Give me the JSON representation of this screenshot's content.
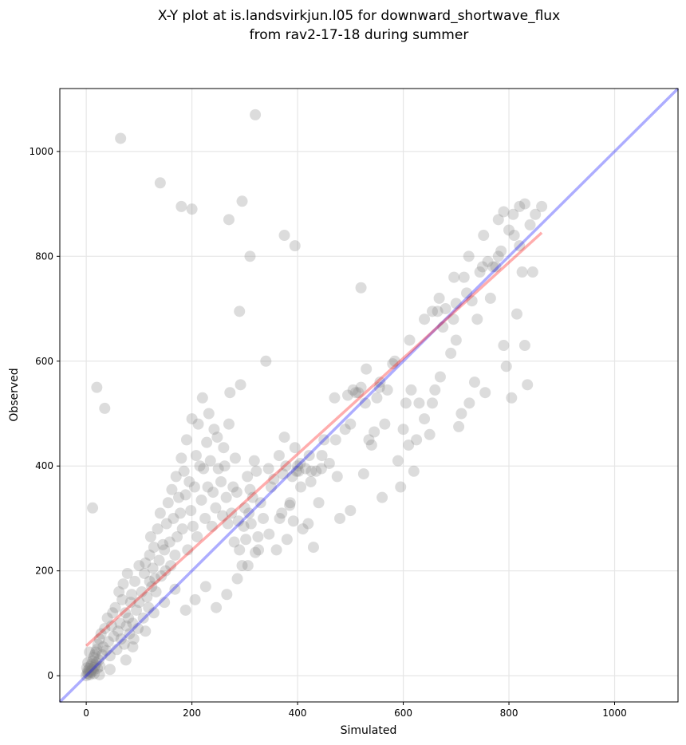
{
  "chart_data": {
    "type": "scatter",
    "title": "X-Y plot at is.landsvirkjun.l05 for downward_shortwave_flux",
    "subtitle": "from rav2-17-18 during summer",
    "xlabel": "Simulated",
    "ylabel": "Observed",
    "xlim": [
      -50,
      1120
    ],
    "ylim": [
      -50,
      1120
    ],
    "xticks": [
      0,
      200,
      400,
      600,
      800,
      1000
    ],
    "yticks": [
      0,
      200,
      400,
      600,
      800,
      1000
    ],
    "grid": true,
    "point_color": "#808080",
    "identity_line_color": "#0000ff",
    "fit_line_color": "#ff0000",
    "identity_line": {
      "x": [
        -50,
        1120
      ],
      "y": [
        -50,
        1120
      ]
    },
    "fit_line": {
      "x": [
        0,
        862
      ],
      "y": [
        57,
        845
      ]
    },
    "series": [
      {
        "x": [
          0,
          2,
          3,
          4,
          5,
          6,
          7,
          8,
          9,
          10,
          11,
          12,
          13,
          14,
          15,
          16,
          17,
          18,
          19,
          20,
          21,
          22,
          24,
          25,
          26,
          28,
          30,
          32,
          35,
          38,
          40,
          42,
          45,
          48,
          50,
          52,
          55,
          58,
          60,
          62,
          64,
          66,
          68,
          70,
          72,
          74,
          76,
          78,
          80,
          82,
          84,
          86,
          88,
          90,
          92,
          95,
          98,
          100,
          100,
          105,
          108,
          110,
          112,
          115,
          118,
          120,
          120,
          122,
          124,
          126,
          128,
          130,
          132,
          135,
          138,
          140,
          142,
          145,
          148,
          150,
          152,
          155,
          158,
          160,
          162,
          165,
          168,
          170,
          172,
          175,
          178,
          180,
          182,
          185,
          188,
          190,
          192,
          195,
          198,
          200,
          202,
          205,
          208,
          210,
          212,
          215,
          218,
          220,
          222,
          225,
          228,
          230,
          232,
          235,
          238,
          240,
          242,
          245,
          248,
          250,
          255,
          258,
          260,
          262,
          265,
          268,
          270,
          272,
          275,
          278,
          280,
          282,
          285,
          288,
          290,
          292,
          295,
          298,
          300,
          302,
          305,
          308,
          310,
          312,
          315,
          318,
          320,
          322,
          325,
          330,
          335,
          340,
          345,
          350,
          355,
          360,
          365,
          370,
          372,
          375,
          378,
          380,
          385,
          390,
          392,
          395,
          398,
          400,
          402,
          405,
          410,
          415,
          420,
          422,
          425,
          430,
          435,
          440,
          445,
          450,
          460,
          470,
          475,
          480,
          490,
          495,
          500,
          505,
          510,
          515,
          520,
          525,
          530,
          535,
          540,
          545,
          550,
          555,
          560,
          565,
          570,
          580,
          590,
          595,
          600,
          605,
          610,
          615,
          620,
          625,
          630,
          640,
          650,
          655,
          660,
          665,
          670,
          675,
          680,
          690,
          695,
          700,
          705,
          710,
          715,
          720,
          725,
          730,
          735,
          740,
          745,
          750,
          755,
          760,
          765,
          770,
          775,
          780,
          785,
          790,
          795,
          800,
          805,
          810,
          815,
          820,
          825,
          830,
          835,
          840,
          845,
          850,
          862,
          270,
          295,
          310,
          320,
          200,
          375,
          395,
          290,
          520,
          655,
          700,
          790,
          180,
          140,
          65,
          20,
          35,
          12,
          6,
          3,
          1,
          8,
          15,
          25,
          45,
          75,
          88,
          112,
          128,
          148,
          168,
          188,
          206,
          226,
          246,
          266,
          286,
          306,
          326,
          346,
          366,
          386,
          406,
          426,
          446,
          472,
          500,
          528,
          556,
          584,
          612,
          640,
          668,
          696,
          724,
          752,
          780,
          808,
          820,
          830
        ],
        "y": [
          0,
          5,
          10,
          3,
          8,
          14,
          2,
          18,
          6,
          22,
          12,
          28,
          9,
          35,
          16,
          40,
          20,
          45,
          25,
          50,
          14,
          60,
          30,
          70,
          18,
          80,
          40,
          55,
          90,
          48,
          110,
          65,
          38,
          95,
          120,
          75,
          130,
          50,
          85,
          160,
          100,
          70,
          145,
          175,
          60,
          120,
          95,
          195,
          110,
          80,
          140,
          155,
          100,
          70,
          180,
          125,
          90,
          210,
          140,
          160,
          110,
          195,
          215,
          150,
          130,
          230,
          180,
          265,
          170,
          205,
          245,
          185,
          160,
          280,
          220,
          310,
          190,
          250,
          240,
          200,
          290,
          330,
          255,
          210,
          355,
          300,
          230,
          380,
          265,
          340,
          310,
          415,
          280,
          390,
          345,
          450,
          240,
          370,
          315,
          490,
          285,
          360,
          420,
          265,
          480,
          400,
          335,
          530,
          395,
          300,
          445,
          360,
          500,
          410,
          285,
          350,
          470,
          320,
          455,
          395,
          370,
          305,
          435,
          400,
          340,
          290,
          480,
          540,
          310,
          360,
          255,
          415,
          350,
          295,
          240,
          555,
          210,
          285,
          320,
          260,
          380,
          310,
          355,
          290,
          340,
          410,
          235,
          390,
          265,
          330,
          300,
          600,
          395,
          360,
          375,
          240,
          420,
          310,
          385,
          455,
          400,
          260,
          325,
          380,
          295,
          435,
          390,
          400,
          390,
          405,
          280,
          395,
          290,
          420,
          370,
          245,
          390,
          330,
          395,
          450,
          405,
          530,
          380,
          300,
          470,
          535,
          315,
          545,
          540,
          540,
          550,
          385,
          585,
          450,
          440,
          465,
          530,
          550,
          340,
          480,
          545,
          595,
          410,
          360,
          470,
          520,
          440,
          545,
          390,
          450,
          520,
          490,
          460,
          520,
          545,
          695,
          570,
          665,
          700,
          615,
          680,
          640,
          475,
          500,
          760,
          730,
          520,
          715,
          560,
          680,
          770,
          780,
          540,
          790,
          720,
          780,
          780,
          800,
          810,
          630,
          590,
          850,
          530,
          840,
          690,
          820,
          770,
          630,
          555,
          860,
          770,
          880,
          895,
          870,
          905,
          800,
          1070,
          890,
          840,
          820,
          695,
          740,
          695,
          710,
          885,
          895,
          940,
          1025,
          550,
          510,
          320,
          45,
          25,
          15,
          8,
          4,
          2,
          12,
          30,
          55,
          85,
          120,
          140,
          165,
          125,
          145,
          170,
          130,
          155,
          185,
          210,
          240,
          270,
          300,
          330,
          360,
          390,
          420,
          450,
          480,
          520,
          560,
          600,
          640,
          680,
          720,
          760,
          800,
          840,
          870,
          880,
          895,
          900
        ]
      }
    ]
  }
}
